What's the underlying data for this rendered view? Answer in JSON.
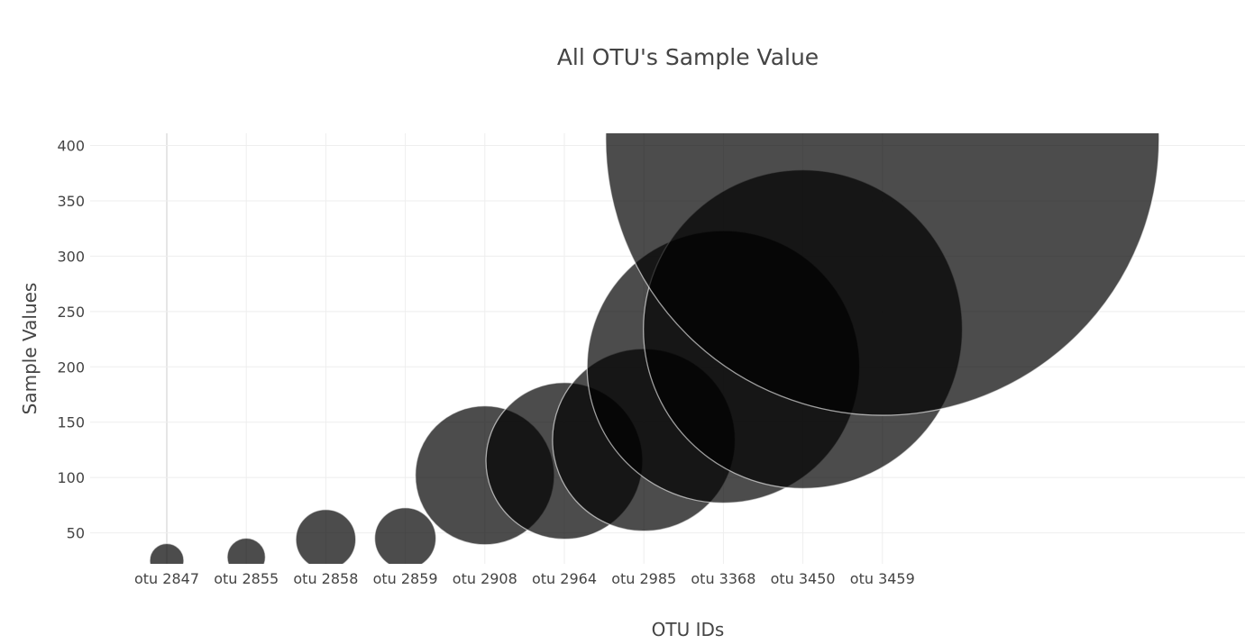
{
  "chart_data": {
    "type": "scatter",
    "title": "All OTU's Sample Value",
    "xlabel": "OTU IDs",
    "ylabel": "Sample Values",
    "categories": [
      "otu 2847",
      "otu 2855",
      "otu 2858",
      "otu 2859",
      "otu 2908",
      "otu 2964",
      "otu 2985",
      "otu 3368",
      "otu 3450",
      "otu 3459"
    ],
    "ylim": [
      22,
      411
    ],
    "yticks": [
      50,
      100,
      150,
      200,
      250,
      300,
      350,
      400
    ],
    "marker_color": "#000000",
    "marker_opacity": 0.7,
    "grid": true,
    "legend": false,
    "series": [
      {
        "points": [
          {
            "x": 2847,
            "y": 25
          },
          {
            "x": 2855,
            "y": 28
          },
          {
            "x": 2858,
            "y": 44
          },
          {
            "x": 2859,
            "y": 45
          },
          {
            "x": 2908,
            "y": 102
          },
          {
            "x": 2964,
            "y": 115
          },
          {
            "x": 2985,
            "y": 134
          },
          {
            "x": 3368,
            "y": 200
          },
          {
            "x": 3450,
            "y": 234
          },
          {
            "x": 3459,
            "y": 406
          }
        ]
      }
    ]
  }
}
